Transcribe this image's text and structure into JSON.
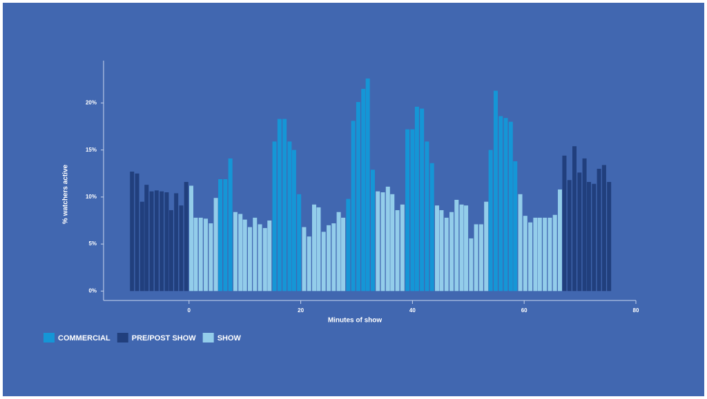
{
  "chart_data": {
    "type": "bar",
    "x_label": "Minutes of show",
    "y_label": "% watchers active",
    "xlim": [
      -15.3,
      80
    ],
    "ylim": [
      -1,
      24.5
    ],
    "xticks": [
      0,
      20,
      40,
      60,
      80
    ],
    "yticks": [
      {
        "value": 0,
        "label": "0%"
      },
      {
        "value": 5,
        "label": "5%"
      },
      {
        "value": 10,
        "label": "10%"
      },
      {
        "value": 15,
        "label": "15%"
      },
      {
        "value": 20,
        "label": "20%"
      }
    ],
    "series": [
      {
        "name": "COMMERCIAL",
        "color": "#1596d6",
        "x": [
          5.6,
          6.5,
          7.4,
          15.3,
          16.2,
          17.1,
          18.0,
          18.8,
          19.7,
          28.5,
          29.4,
          30.3,
          31.2,
          32.0,
          32.9,
          39.1,
          40.0,
          40.8,
          41.7,
          42.6,
          43.5,
          54.0,
          54.9,
          55.8,
          56.7,
          57.6,
          58.4
        ],
        "values": [
          11.9,
          11.9,
          14.1,
          15.9,
          18.3,
          18.3,
          15.9,
          15.0,
          10.3,
          9.8,
          18.1,
          20.1,
          21.5,
          22.6,
          12.9,
          17.2,
          17.2,
          19.6,
          19.4,
          15.9,
          13.6,
          15.0,
          21.3,
          18.6,
          18.4,
          18.0,
          13.8
        ]
      },
      {
        "name": "PRE/POST SHOW",
        "color": "#213f7d",
        "x": [
          -10.2,
          -9.3,
          -8.4,
          -7.6,
          -6.7,
          -5.8,
          -4.9,
          -4.0,
          -3.2,
          -2.3,
          -1.4,
          -0.5,
          67.2,
          68.1,
          69.0,
          69.9,
          70.8,
          71.6,
          72.5,
          73.4,
          74.3,
          75.2
        ],
        "values": [
          12.7,
          12.5,
          9.5,
          11.3,
          10.6,
          10.7,
          10.6,
          10.5,
          8.6,
          10.4,
          9.1,
          11.6,
          14.4,
          11.8,
          15.4,
          12.6,
          14.1,
          11.6,
          11.4,
          13.0,
          13.4,
          11.6
        ]
      },
      {
        "name": "SHOW",
        "color": "#93cdea",
        "x": [
          0.4,
          1.2,
          2.1,
          3.0,
          3.9,
          4.8,
          8.3,
          9.2,
          10.0,
          10.9,
          11.8,
          12.7,
          13.6,
          14.4,
          20.6,
          21.5,
          22.4,
          23.2,
          24.1,
          25.0,
          25.9,
          26.8,
          27.6,
          33.8,
          34.7,
          35.6,
          36.4,
          37.3,
          38.2,
          44.4,
          45.2,
          46.1,
          47.0,
          47.9,
          48.8,
          49.6,
          50.5,
          51.4,
          52.3,
          53.2,
          59.3,
          60.2,
          61.1,
          62.0,
          62.8,
          63.7,
          64.6,
          65.5,
          66.4
        ],
        "values": [
          11.2,
          7.8,
          7.8,
          7.7,
          7.2,
          9.9,
          8.4,
          8.2,
          7.6,
          6.8,
          7.8,
          7.1,
          6.7,
          7.5,
          6.8,
          5.8,
          9.2,
          8.9,
          6.3,
          7.0,
          7.2,
          8.4,
          7.8,
          10.6,
          10.5,
          11.1,
          10.3,
          8.6,
          9.2,
          9.1,
          8.6,
          7.8,
          8.4,
          9.7,
          9.2,
          9.1,
          5.6,
          7.1,
          7.1,
          9.5,
          10.3,
          8.0,
          7.3,
          7.8,
          7.8,
          7.8,
          7.8,
          8.1,
          10.8
        ]
      }
    ]
  }
}
